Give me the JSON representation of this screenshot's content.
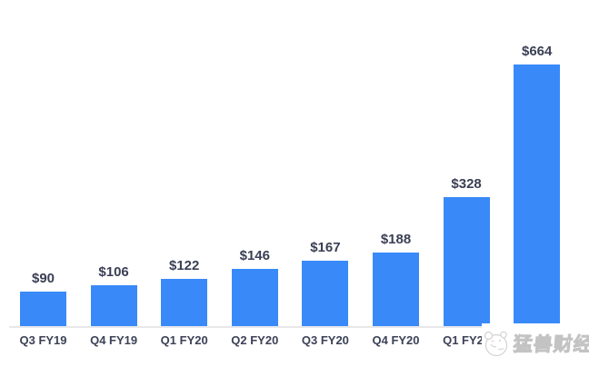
{
  "chart_data": {
    "type": "bar",
    "categories": [
      "Q3 FY19",
      "Q4 FY19",
      "Q1 FY20",
      "Q2 FY20",
      "Q3 FY20",
      "Q4 FY20",
      "Q1 FY21",
      ""
    ],
    "values": [
      90,
      106,
      122,
      146,
      167,
      188,
      328,
      664
    ],
    "value_labels": [
      "$90",
      "$106",
      "$122",
      "$146",
      "$167",
      "$188",
      "$328",
      "$664"
    ],
    "title": "",
    "xlabel": "",
    "ylabel": "",
    "ylim": [
      0,
      700
    ],
    "grid": false,
    "legend": "none",
    "bar_color": "#398af8",
    "value_label_color": "#3a3f54",
    "tick_label_color": "#3c4257",
    "axis_line_color": "#e8e8eb"
  },
  "watermark": {
    "text": "猛兽财经",
    "logo": "beast-face-logo",
    "color": "#c3c3c3"
  }
}
